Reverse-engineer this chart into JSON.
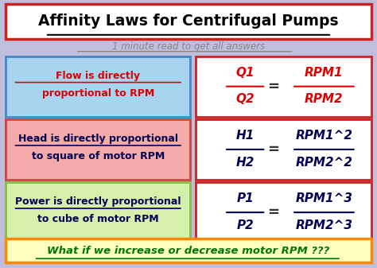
{
  "title": "Affinity Laws for Centrifugal Pumps",
  "subtitle": "1 minute read to get all answers",
  "bg_color": "#c0bedd",
  "title_box_color": "#ffffff",
  "title_border_color": "#cc2222",
  "title_color": "#000000",
  "subtitle_color": "#888888",
  "row1_left_text_line1": "Flow is directly",
  "row1_left_text_line2": "proportional to RPM",
  "row1_left_bg": "#a8d4f0",
  "row1_left_border": "#4488cc",
  "row1_left_color": "#dd0000",
  "row1_right_num": "Q1",
  "row1_right_den": "Q2",
  "row1_right_rnum": "RPM1",
  "row1_right_rden": "RPM2",
  "row1_right_color": "#dd0000",
  "row2_left_text_line1": "Head is directly proportional",
  "row2_left_text_line2": "to square of motor RPM",
  "row2_left_bg": "#f5aaaa",
  "row2_left_border": "#cc4444",
  "row2_left_color": "#000055",
  "row2_right_num": "H1",
  "row2_right_den": "H2",
  "row2_right_rnum": "RPM1^2",
  "row2_right_rden": "RPM2^2",
  "row2_right_color": "#000055",
  "row3_left_text_line1": "Power is directly proportional",
  "row3_left_text_line2": "to cube of motor RPM",
  "row3_left_bg": "#d4f0aa",
  "row3_left_border": "#88bb44",
  "row3_left_color": "#000055",
  "row3_right_num": "P1",
  "row3_right_den": "P2",
  "row3_right_rnum": "RPM1^3",
  "row3_right_rden": "RPM2^3",
  "row3_right_color": "#000055",
  "bottom_text": "What if we increase or decrease motor RPM ???",
  "bottom_color": "#007700",
  "bottom_bg": "#ffffc0",
  "bottom_border": "#ff8800",
  "formula_box_bg": "#ffffff",
  "formula_box_border": "#cc2222"
}
